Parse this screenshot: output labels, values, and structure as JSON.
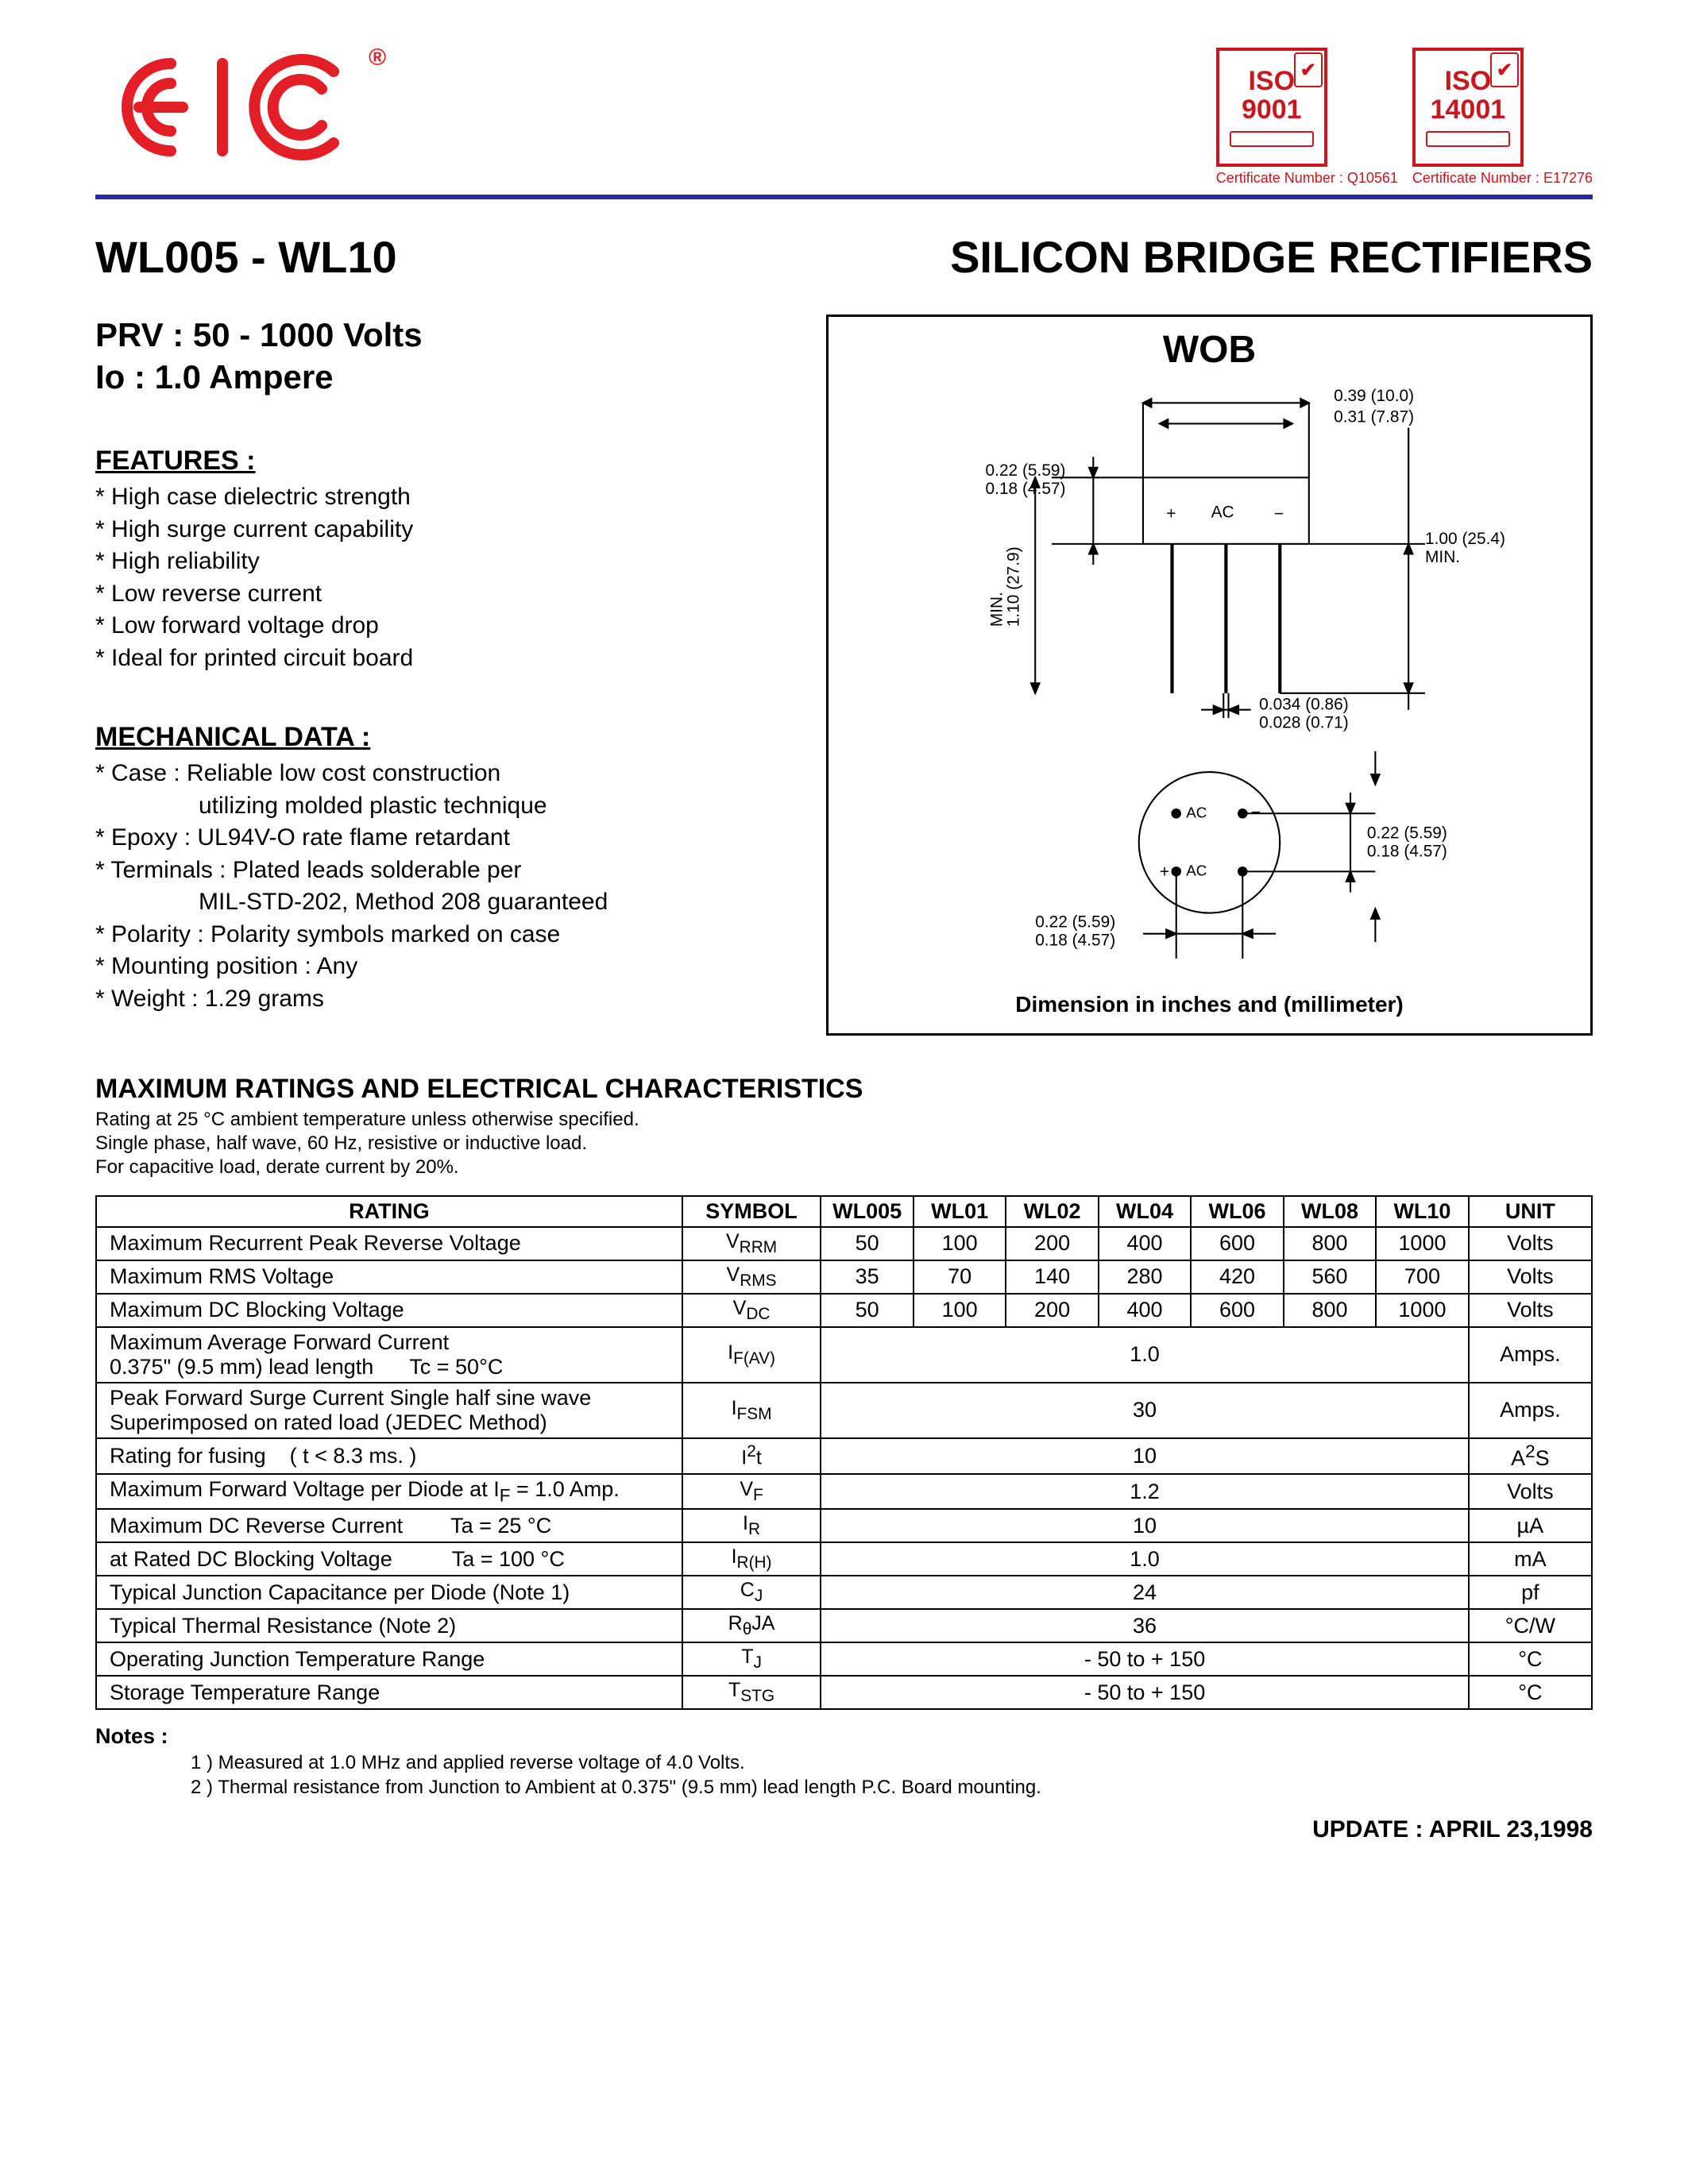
{
  "header": {
    "logo_text": "EIC",
    "logo_color": "#e41e26",
    "reg_mark": "®",
    "certs": [
      {
        "label": "ISO\n9001",
        "color": "#c9171e",
        "caption": "Certificate Number : Q10561"
      },
      {
        "label": "ISO\n14001",
        "color": "#c9171e",
        "caption": "Certificate Number : E17276"
      }
    ],
    "rule_color": "#2a2aa0"
  },
  "title_left": "WL005 - WL10",
  "title_right": "SILICON BRIDGE RECTIFIERS",
  "spec_prv": "PRV : 50 - 1000 Volts",
  "spec_io": "Io : 1.0 Ampere",
  "features_h": "FEATURES :",
  "features": [
    "*  High case dielectric strength",
    "*  High surge current capability",
    "*  High reliability",
    "*  Low reverse current",
    "*  Low forward voltage drop",
    "*  Ideal for printed circuit board"
  ],
  "mech_h": "MECHANICAL  DATA :",
  "mech": [
    "*  Case : Reliable low cost construction",
    "            utilizing molded plastic technique",
    "*  Epoxy : UL94V-O rate flame retardant",
    "*  Terminals : Plated leads solderable per",
    "            MIL-STD-202, Method 208 guaranteed",
    "*  Polarity : Polarity symbols marked on case",
    "*  Mounting  position : Any",
    "*  Weight :  1.29 grams"
  ],
  "diagram": {
    "title": "WOB",
    "caption": "Dimension in inches and (millimeter)",
    "dims": {
      "body_w_max": "0.39 (10.0)",
      "body_w_min": "0.31 (7.87)",
      "body_h_max": "0.22 (5.59)",
      "body_h_min": "0.18 (4.57)",
      "lead_len": "1.00 (25.4)\nMIN.",
      "body_depth_label": "1.10 (27.9)\nMIN.",
      "lead_dia_max": "0.034 (0.86)",
      "lead_dia_min": "0.028 (0.71)",
      "pin_pitch_max": "0.22 (5.59)",
      "pin_pitch_min": "0.18 (4.57)",
      "circle_pitch_max": "0.22 (5.59)",
      "circle_pitch_min": "0.18 (4.57)",
      "top_labels": [
        "+",
        "AC",
        "−"
      ],
      "circle_labels": [
        "AC",
        "AC",
        "+",
        "−"
      ]
    }
  },
  "ratings_h": "MAXIMUM  RATINGS  AND  ELECTRICAL  CHARACTERISTICS",
  "ratings_note": [
    "Rating at  25 °C ambient temperature unless otherwise specified.",
    "Single phase, half wave, 60 Hz, resistive or inductive load.",
    "For capacitive load, derate current by 20%."
  ],
  "table": {
    "header": [
      "RATING",
      "SYMBOL",
      "WL005",
      "WL01",
      "WL02",
      "WL04",
      "WL06",
      "WL08",
      "WL10",
      "UNIT"
    ],
    "col_widths_pct": [
      38,
      9,
      6,
      6,
      6,
      6,
      6,
      6,
      6,
      8
    ],
    "rows": [
      {
        "rating": "Maximum Recurrent Peak Reverse Voltage",
        "symbol": "V<sub>RRM</sub>",
        "vals": [
          "50",
          "100",
          "200",
          "400",
          "600",
          "800",
          "1000"
        ],
        "unit": "Volts"
      },
      {
        "rating": "Maximum RMS Voltage",
        "symbol": "V<sub>RMS</sub>",
        "vals": [
          "35",
          "70",
          "140",
          "280",
          "420",
          "560",
          "700"
        ],
        "unit": "Volts"
      },
      {
        "rating": "Maximum DC Blocking Voltage",
        "symbol": "V<sub>DC</sub>",
        "vals": [
          "50",
          "100",
          "200",
          "400",
          "600",
          "800",
          "1000"
        ],
        "unit": "Volts"
      },
      {
        "rating": "Maximum Average Forward Current<br>0.375\" (9.5 mm) lead length&nbsp;&nbsp;&nbsp;&nbsp;&nbsp;&nbsp;Tc = 50°C",
        "symbol": "I<sub>F(AV)</sub>",
        "span": "1.0",
        "unit": "Amps."
      },
      {
        "rating": "Peak Forward Surge Current Single half sine wave<br>Superimposed on rated load (JEDEC Method)",
        "symbol": "I<sub>FSM</sub>",
        "span": "30",
        "unit": "Amps."
      },
      {
        "rating": "Rating for fusing&nbsp;&nbsp;&nbsp;&nbsp;( t &lt; 8.3 ms. )",
        "symbol": "I<sup>2</sup>t",
        "span": "10",
        "unit": "A<sup>2</sup>S"
      },
      {
        "rating": "Maximum Forward Voltage per Diode at I<sub>F</sub> = 1.0 Amp.",
        "symbol": "V<sub>F</sub>",
        "span": "1.2",
        "unit": "Volts"
      },
      {
        "rating": "Maximum DC Reverse Current&nbsp;&nbsp;&nbsp;&nbsp;&nbsp;&nbsp;&nbsp;&nbsp;Ta = 25 °C",
        "symbol": "I<sub>R</sub>",
        "span": "10",
        "unit": "µA"
      },
      {
        "rating": "at Rated DC Blocking Voltage&nbsp;&nbsp;&nbsp;&nbsp;&nbsp;&nbsp;&nbsp;&nbsp;&nbsp;&nbsp;Ta = 100 °C",
        "symbol": "I<sub>R(H)</sub>",
        "span": "1.0",
        "unit": "mA"
      },
      {
        "rating": "Typical Junction Capacitance per Diode (Note 1)",
        "symbol": "C<sub>J</sub>",
        "span": "24",
        "unit": "pf"
      },
      {
        "rating": "Typical Thermal Resistance (Note 2)",
        "symbol": "R<sub>θ</sub>JA",
        "span": "36",
        "unit": "°C/W"
      },
      {
        "rating": "Operating Junction Temperature Range",
        "symbol": "T<sub>J</sub>",
        "span": "- 50 to + 150",
        "unit": "°C"
      },
      {
        "rating": "Storage Temperature Range",
        "symbol": "T<sub>STG</sub>",
        "span": "- 50 to + 150",
        "unit": "°C"
      }
    ]
  },
  "notes_h": "Notes :",
  "notes": [
    "1 )  Measured at 1.0 MHz and applied reverse voltage of 4.0 Volts.",
    "2 )  Thermal resistance from Junction to Ambient at 0.375\" (9.5 mm) lead length P.C. Board mounting."
  ],
  "update": "UPDATE : APRIL 23,1998"
}
